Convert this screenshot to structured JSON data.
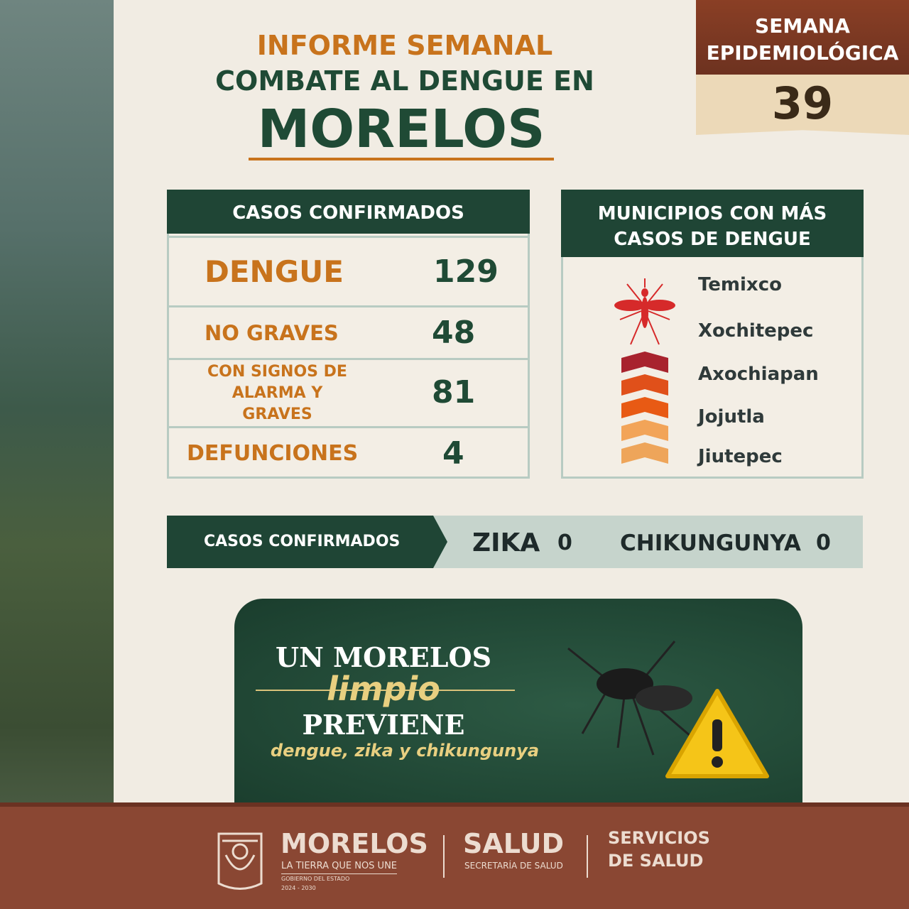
{
  "header": {
    "line1": "INFORME SEMANAL",
    "line2": "COMBATE AL DENGUE EN",
    "line3": "MORELOS"
  },
  "week": {
    "label_line1": "SEMANA",
    "label_line2": "EPIDEMIOLÓGICA",
    "number": "39"
  },
  "confirmed": {
    "title": "CASOS CONFIRMADOS",
    "rows": [
      {
        "label": "DENGUE",
        "value": "129"
      },
      {
        "label": "NO GRAVES",
        "value": "48"
      },
      {
        "label_line1": "CON SIGNOS DE",
        "label_line2": "ALARMA Y GRAVES",
        "value": "81"
      },
      {
        "label": "DEFUNCIONES",
        "value": "4"
      }
    ]
  },
  "municipalities": {
    "title_line1": "MUNICIPIOS CON MÁS",
    "title_line2": "CASOS DE DENGUE",
    "items": [
      "Temixco",
      "Xochitepec",
      "Axochiapan",
      "Jojutla",
      "Jiutepec"
    ],
    "chevron_colors": [
      "#a8232e",
      "#e0501a",
      "#e85a14",
      "#f2a458",
      "#eea55a"
    ],
    "icon": "mosquito-icon"
  },
  "other": {
    "label": "CASOS CONFIRMADOS",
    "zika_label": "ZIKA",
    "zika_value": "0",
    "chik_label": "CHIKUNGUNYA",
    "chik_value": "0"
  },
  "banner": {
    "line1": "UN MORELOS",
    "line2": "limpio",
    "line3": "PREVIENE",
    "line4": "dengue, zika y chikungunya"
  },
  "footer": {
    "brand": "MORELOS",
    "slogan": "LA TIERRA QUE NOS UNE",
    "gov": "GOBIERNO DEL ESTADO",
    "years": "2024 - 2030",
    "salud": "SALUD",
    "salud_sub": "SECRETARÍA DE SALUD",
    "serv1": "SERVICIOS",
    "serv2": "DE SALUD"
  },
  "colors": {
    "green": "#1f4535",
    "orange": "#c8731c",
    "brown": "#8a4733"
  }
}
